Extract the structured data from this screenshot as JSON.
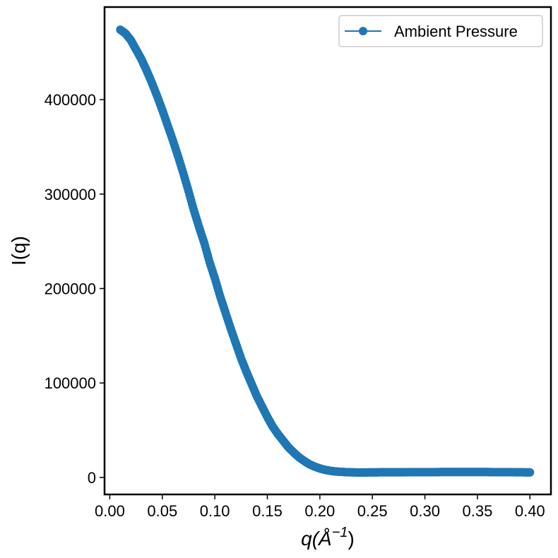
{
  "chart_data": {
    "type": "line",
    "title": "",
    "xlabel_main": "q(",
    "xlabel_unit": "Å",
    "xlabel_sup": "−1",
    "xlabel_close": ")",
    "ylabel": "I(q)",
    "xlim": [
      -0.005,
      0.42
    ],
    "ylim": [
      -18000,
      498000
    ],
    "xticks": [
      0.0,
      0.05,
      0.1,
      0.15,
      0.2,
      0.25,
      0.3,
      0.35,
      0.4
    ],
    "xtick_labels": [
      "0.00",
      "0.05",
      "0.10",
      "0.15",
      "0.20",
      "0.25",
      "0.30",
      "0.35",
      "0.40"
    ],
    "yticks": [
      0,
      100000,
      200000,
      300000,
      400000
    ],
    "ytick_labels": [
      "0",
      "100000",
      "200000",
      "300000",
      "400000"
    ],
    "grid": false,
    "legend_position": "top-right",
    "series": [
      {
        "name": "Ambient Pressure",
        "color": "#1f77b4",
        "marker": "circle",
        "x": [
          0.01,
          0.015,
          0.02,
          0.025,
          0.03,
          0.035,
          0.04,
          0.045,
          0.05,
          0.055,
          0.06,
          0.065,
          0.07,
          0.075,
          0.08,
          0.085,
          0.09,
          0.095,
          0.1,
          0.105,
          0.11,
          0.115,
          0.12,
          0.125,
          0.13,
          0.135,
          0.14,
          0.145,
          0.15,
          0.155,
          0.16,
          0.165,
          0.17,
          0.175,
          0.18,
          0.185,
          0.19,
          0.195,
          0.2,
          0.205,
          0.21,
          0.215,
          0.22,
          0.225,
          0.23,
          0.235,
          0.24,
          0.245,
          0.25,
          0.255,
          0.26,
          0.265,
          0.27,
          0.275,
          0.28,
          0.285,
          0.29,
          0.295,
          0.3,
          0.305,
          0.31,
          0.315,
          0.32,
          0.325,
          0.33,
          0.335,
          0.34,
          0.345,
          0.35,
          0.355,
          0.36,
          0.365,
          0.37,
          0.375,
          0.38,
          0.385,
          0.39,
          0.395,
          0.4
        ],
        "y": [
          474000,
          470000,
          463000,
          453000,
          443000,
          431000,
          418000,
          404000,
          389000,
          373000,
          357000,
          340000,
          322000,
          303000,
          283000,
          265000,
          248000,
          228000,
          211000,
          192000,
          175000,
          158000,
          142000,
          126000,
          112000,
          99000,
          86000,
          75000,
          64000,
          54000,
          46000,
          39000,
          32000,
          26500,
          21500,
          17500,
          14000,
          11500,
          9500,
          8000,
          7000,
          6300,
          5900,
          5600,
          5400,
          5300,
          5300,
          5300,
          5400,
          5400,
          5500,
          5500,
          5500,
          5500,
          5500,
          5600,
          5600,
          5600,
          5600,
          5600,
          5600,
          5700,
          5700,
          5700,
          5700,
          5700,
          5700,
          5700,
          5700,
          5700,
          5700,
          5600,
          5600,
          5600,
          5600,
          5500,
          5500,
          5400,
          5400
        ]
      }
    ]
  }
}
